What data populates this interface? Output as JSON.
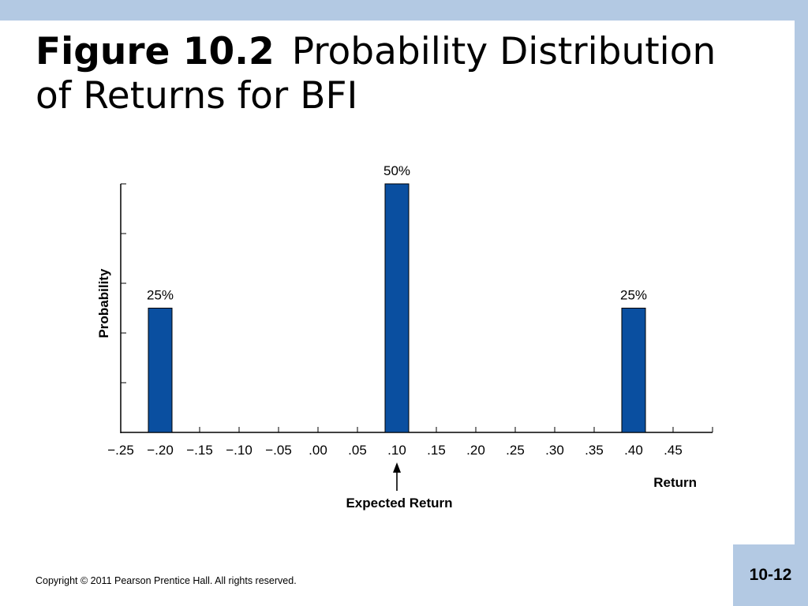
{
  "slide": {
    "figure_number": "Figure 10.2",
    "title": "Probability Distribution of Returns for BFI",
    "copyright": "Copyright © 2011 Pearson Prentice Hall. All rights reserved.",
    "page_number": "10-12"
  },
  "colors": {
    "bar": "#0a4fa0",
    "band": "#b3c9e3"
  },
  "chart_data": {
    "type": "bar",
    "title": "",
    "xlabel": "Return",
    "ylabel": "Probability",
    "x": [
      -0.2,
      0.1,
      0.4
    ],
    "values": [
      25,
      50,
      25
    ],
    "value_labels": [
      "25%",
      "50%",
      "25%"
    ],
    "xticks": [
      -0.25,
      -0.2,
      -0.15,
      -0.1,
      -0.05,
      0.0,
      0.05,
      0.1,
      0.15,
      0.2,
      0.25,
      0.3,
      0.35,
      0.4,
      0.45
    ],
    "xtick_labels": [
      "−.25",
      "−.20",
      "−.15",
      "−.10",
      "−.05",
      ".00",
      ".05",
      ".10",
      ".15",
      ".20",
      ".25",
      ".30",
      ".35",
      ".40",
      ".45"
    ],
    "xlim": [
      -0.25,
      0.5
    ],
    "ylim": [
      0,
      50
    ],
    "yticks": [
      0,
      10,
      20,
      30,
      40,
      50
    ],
    "grid": false,
    "annotation": {
      "text": "Expected Return",
      "x": 0.1
    }
  }
}
